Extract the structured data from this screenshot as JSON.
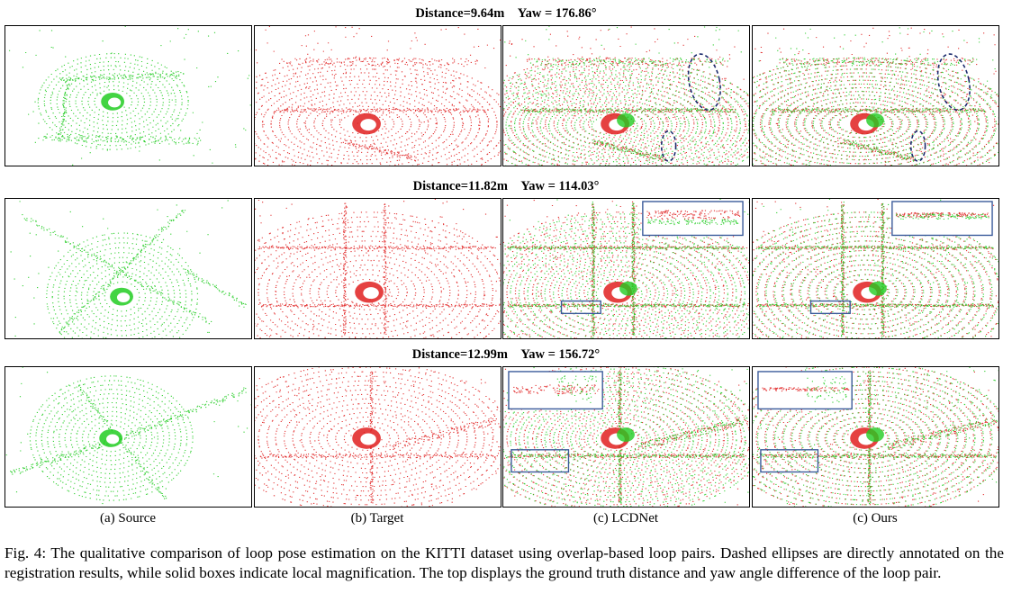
{
  "rows": [
    {
      "title": "Distance=9.64m　Yaw = 176.86°"
    },
    {
      "title": "Distance=11.82m　Yaw = 114.03°"
    },
    {
      "title": "Distance=12.99m　Yaw = 156.72°"
    }
  ],
  "columns": [
    {
      "label": "(a) Source"
    },
    {
      "label": "(b) Target"
    },
    {
      "label": "(c) LCDNet"
    },
    {
      "label": "(c) Ours"
    }
  ],
  "colors": {
    "source": "#22cc22",
    "target": "#e02020",
    "ellipse": "#1a2a6c",
    "box": "#3a5a9a"
  },
  "caption": "Fig. 4: The qualitative comparison of loop pose estimation on the KITTI dataset using overlap-based loop pairs. Dashed ellipses are directly annotated on the registration results, while solid boxes indicate local magnification. The top displays the ground truth distance and yaw angle difference of the loop pair."
}
